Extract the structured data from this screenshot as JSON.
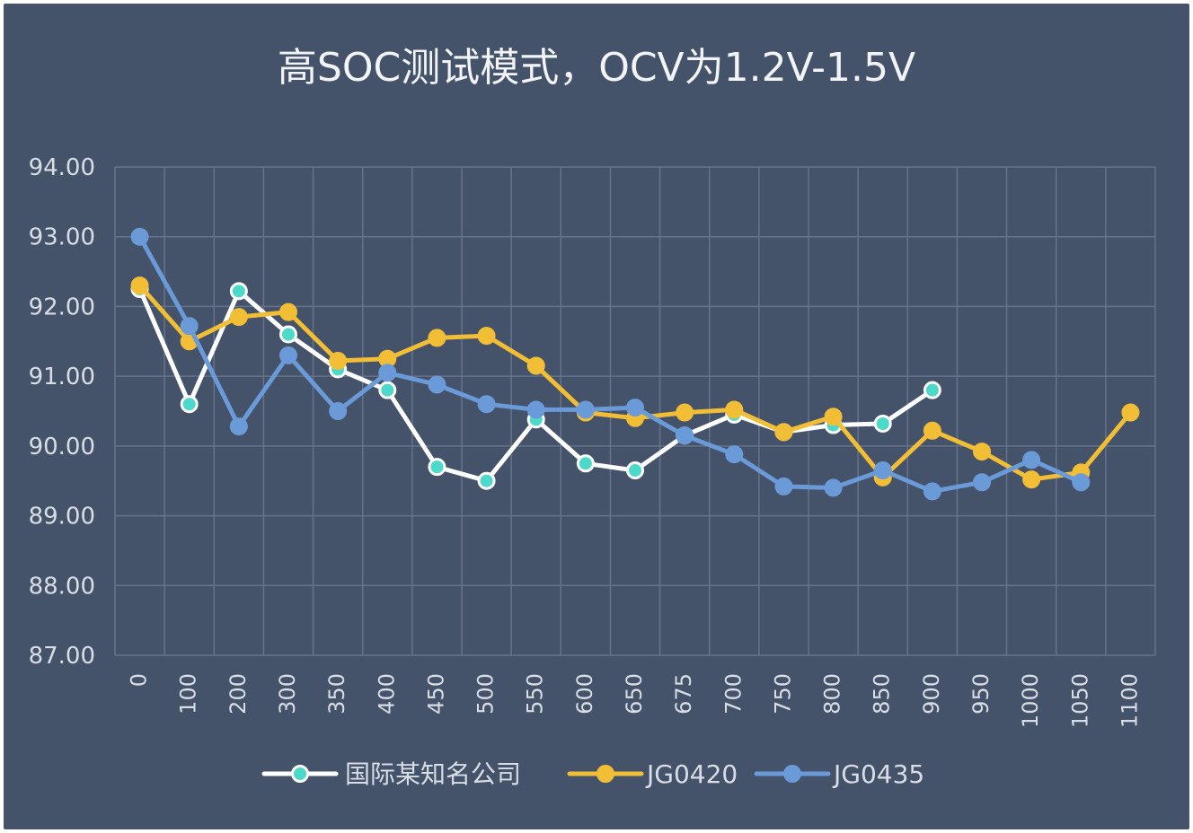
{
  "chart_data": {
    "type": "line",
    "title": "高SOC测试模式，OCV为1.2V-1.5V",
    "xlabel": "",
    "ylabel": "",
    "ylim": [
      87.0,
      94.0
    ],
    "yticks": [
      "87.00",
      "88.00",
      "89.00",
      "90.00",
      "91.00",
      "92.00",
      "93.00",
      "94.00"
    ],
    "categories": [
      "0",
      "100",
      "200",
      "300",
      "350",
      "400",
      "450",
      "500",
      "550",
      "600",
      "650",
      "675",
      "700",
      "750",
      "800",
      "850",
      "900",
      "950",
      "1000",
      "1050",
      "1100"
    ],
    "grid": true,
    "legend": "bottom",
    "series": [
      {
        "name": "国际某知名公司",
        "color": "#ffffff",
        "marker_color": "#4dd9c9",
        "values": [
          92.25,
          90.6,
          92.22,
          91.6,
          91.1,
          90.8,
          89.7,
          89.5,
          90.38,
          89.75,
          89.65,
          90.15,
          90.45,
          90.2,
          90.3,
          90.32,
          90.8,
          null,
          null,
          null,
          null
        ]
      },
      {
        "name": "JG0420",
        "color": "#f2be35",
        "marker_color": "#f2be35",
        "values": [
          92.3,
          91.5,
          91.85,
          91.92,
          91.22,
          91.25,
          91.55,
          91.58,
          91.15,
          90.48,
          90.4,
          90.48,
          90.52,
          90.2,
          90.42,
          89.55,
          90.22,
          89.92,
          89.52,
          89.62,
          90.48
        ]
      },
      {
        "name": "JG0435",
        "color": "#6a9bd8",
        "marker_color": "#6a9bd8",
        "values": [
          93.0,
          91.72,
          90.28,
          91.3,
          90.5,
          91.05,
          90.88,
          90.6,
          90.52,
          90.52,
          90.55,
          90.15,
          89.88,
          89.42,
          89.4,
          89.65,
          89.35,
          89.48,
          89.8,
          89.48,
          null
        ]
      }
    ]
  }
}
